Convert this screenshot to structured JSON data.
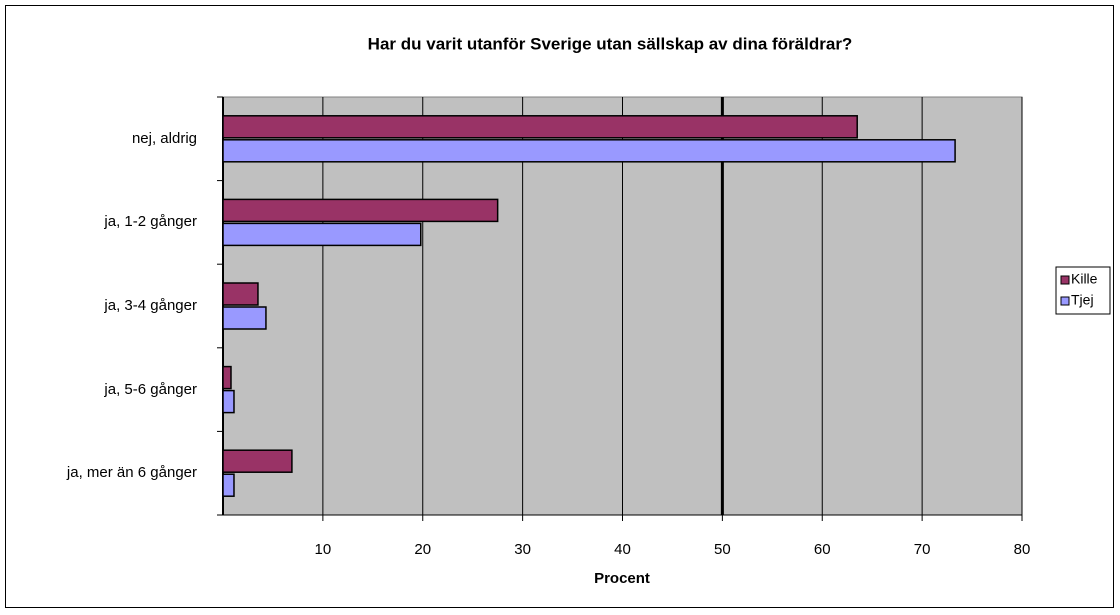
{
  "chart_data": {
    "type": "barh",
    "title": "Har du varit utanför Sverige utan sällskap av dina föräldrar?",
    "x_label": "Procent",
    "categories": [
      "nej, aldrig",
      "ja, 1-2 gånger",
      "ja, 3-4 gånger",
      "ja, 5-6 gånger",
      "ja, mer än 6 gånger"
    ],
    "series": [
      {
        "name": "Kille",
        "color": "#993366",
        "values": [
          63.5,
          27.5,
          3.5,
          0.8,
          6.9
        ]
      },
      {
        "name": "Tjej",
        "color": "#9999ff",
        "values": [
          73.3,
          19.8,
          4.3,
          1.1,
          1.1
        ]
      }
    ],
    "xlim": [
      0,
      80
    ],
    "xticks": [
      10,
      20,
      30,
      40,
      50,
      60,
      70,
      80
    ],
    "grid": true,
    "reference_line": 50,
    "legend": "right",
    "plot_background": "#c0c0c0"
  }
}
